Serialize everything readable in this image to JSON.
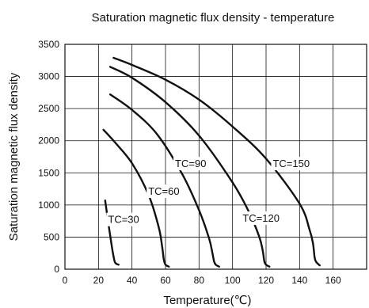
{
  "chart_data": {
    "type": "line",
    "title": "Saturation magnetic flux density - temperature",
    "xlabel": "Temperature(℃)",
    "ylabel": "Saturation magnetic flux density",
    "xlim": [
      0,
      180
    ],
    "ylim": [
      0,
      3500
    ],
    "xticks": [
      0,
      20,
      40,
      60,
      80,
      100,
      120,
      140,
      160
    ],
    "yticks": [
      0,
      500,
      1000,
      1500,
      2000,
      2500,
      3000,
      3500
    ],
    "grid": true,
    "series": [
      {
        "name": "TC=30",
        "x": [
          24,
          26,
          28,
          29,
          30,
          32
        ],
        "y": [
          1070,
          700,
          350,
          200,
          100,
          70
        ]
      },
      {
        "name": "TC=60",
        "x": [
          23,
          30,
          40,
          50,
          56,
          58,
          59,
          60,
          62
        ],
        "y": [
          2170,
          1970,
          1650,
          1150,
          650,
          350,
          150,
          70,
          40
        ]
      },
      {
        "name": "TC=90",
        "x": [
          27,
          40,
          55,
          70,
          80,
          86,
          88,
          89,
          90,
          92
        ],
        "y": [
          2720,
          2480,
          2100,
          1480,
          920,
          480,
          250,
          120,
          70,
          40
        ]
      },
      {
        "name": "TC=120",
        "x": [
          27,
          40,
          60,
          80,
          100,
          110,
          116,
          118,
          119,
          120,
          122
        ],
        "y": [
          3150,
          2980,
          2600,
          2080,
          1350,
          880,
          500,
          290,
          120,
          70,
          40
        ]
      },
      {
        "name": "TC=150",
        "x": [
          29,
          40,
          60,
          80,
          100,
          120,
          140,
          146,
          148,
          149,
          150,
          152
        ],
        "y": [
          3290,
          3180,
          2950,
          2640,
          2220,
          1720,
          1020,
          610,
          400,
          180,
          110,
          60
        ]
      }
    ],
    "annotations": [
      {
        "text": "TC=30",
        "x": 35,
        "y": 780
      },
      {
        "text": "TC=60",
        "x": 59,
        "y": 1220
      },
      {
        "text": "TC=90",
        "x": 75,
        "y": 1650
      },
      {
        "text": "TC=120",
        "x": 117,
        "y": 800
      },
      {
        "text": "TC=150",
        "x": 135,
        "y": 1650
      }
    ]
  }
}
